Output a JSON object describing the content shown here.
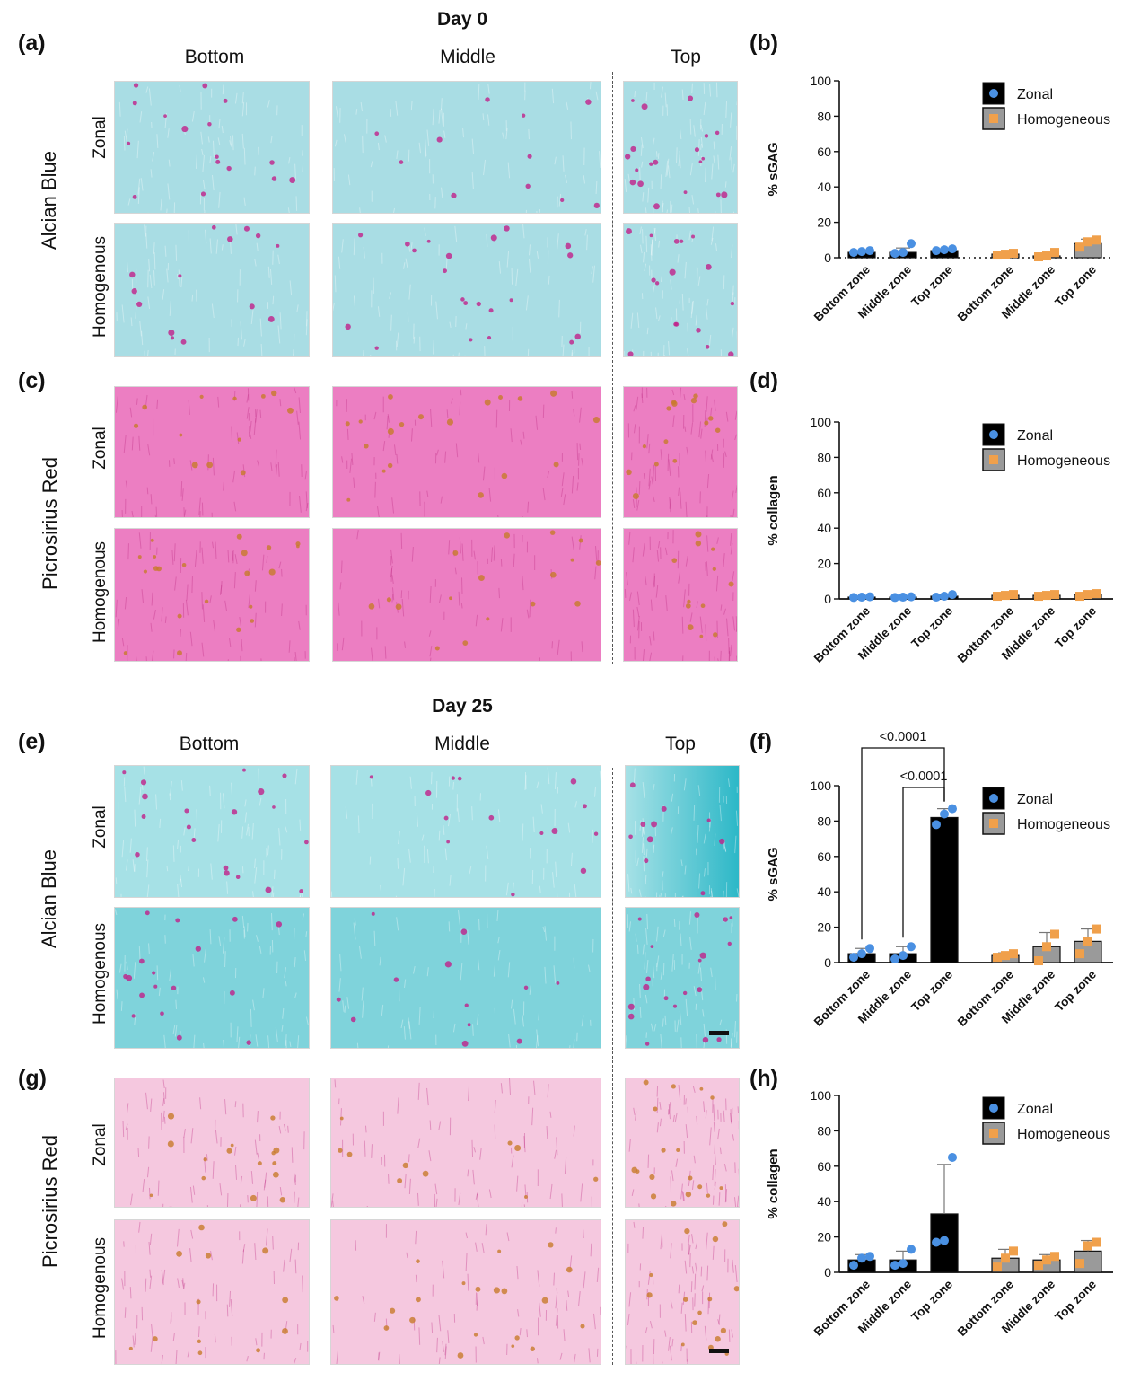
{
  "figure": {
    "day_labels": [
      "Day 0",
      "Day 25"
    ],
    "panel_letters": [
      "(a)",
      "(b)",
      "(c)",
      "(d)",
      "(e)",
      "(f)",
      "(g)",
      "(h)"
    ],
    "column_headers": [
      "Bottom",
      "Middle",
      "Top"
    ],
    "stain_labels": [
      "Alcian Blue",
      "Picrosirius Red"
    ],
    "row_labels": [
      "Zonal",
      "Homogenous"
    ]
  },
  "colors": {
    "alcian_bg": "#a9dde4",
    "alcian_bg_day25": "#7fd3db",
    "picro_bg": "#ec7ec2",
    "picro_bg_day25": "#f5c8df",
    "cell_magenta": "#c0208a",
    "cell_orange": "#c87a2a",
    "zonal_bar": "#000000",
    "homog_bar": "#9a9a9a",
    "zonal_dot": "#4a90e2",
    "homog_dot": "#f0a04b"
  },
  "chart_data": [
    {
      "type": "bar",
      "panel": "(b)",
      "ylabel": "% sGAG",
      "ylim": [
        0,
        100
      ],
      "yticks": [
        0,
        20,
        40,
        60,
        80,
        100
      ],
      "categories": [
        "Bottom zone",
        "Middle zone",
        "Top zone",
        "Bottom zone",
        "Middle zone",
        "Top zone"
      ],
      "legend": [
        "Zonal",
        "Homogeneous"
      ],
      "legend_position": "top-right",
      "zero_line_dotted": true,
      "bars": [
        {
          "group": "Zonal",
          "mean": 3,
          "sd": 1,
          "points": [
            3,
            3.5,
            4
          ]
        },
        {
          "group": "Zonal",
          "mean": 3,
          "sd": 2.5,
          "points": [
            2.5,
            3,
            8
          ]
        },
        {
          "group": "Zonal",
          "mean": 4,
          "sd": 1,
          "points": [
            4,
            4.5,
            5
          ]
        },
        {
          "group": "Homogeneous",
          "mean": 2,
          "sd": 0.5,
          "points": [
            1.5,
            2,
            2.5
          ]
        },
        {
          "group": "Homogeneous",
          "mean": 1,
          "sd": 1,
          "points": [
            0.5,
            1,
            3
          ]
        },
        {
          "group": "Homogeneous",
          "mean": 8,
          "sd": 2.5,
          "points": [
            6,
            9,
            10
          ]
        }
      ],
      "comparisons": []
    },
    {
      "type": "bar",
      "panel": "(d)",
      "ylabel": "% collagen",
      "ylim": [
        0,
        100
      ],
      "yticks": [
        0,
        20,
        40,
        60,
        80,
        100
      ],
      "categories": [
        "Bottom zone",
        "Middle zone",
        "Top zone",
        "Bottom zone",
        "Middle zone",
        "Top zone"
      ],
      "legend": [
        "Zonal",
        "Homogeneous"
      ],
      "legend_position": "top-right",
      "zero_line_dotted": false,
      "bars": [
        {
          "group": "Zonal",
          "mean": 1,
          "sd": 0.3,
          "points": [
            0.8,
            1,
            1.2
          ]
        },
        {
          "group": "Zonal",
          "mean": 1,
          "sd": 0.3,
          "points": [
            0.8,
            1,
            1.2
          ]
        },
        {
          "group": "Zonal",
          "mean": 1.5,
          "sd": 0.8,
          "points": [
            1,
            1.5,
            2.5
          ]
        },
        {
          "group": "Homogeneous",
          "mean": 2,
          "sd": 0.5,
          "points": [
            1.5,
            2,
            2.5
          ]
        },
        {
          "group": "Homogeneous",
          "mean": 2,
          "sd": 0.5,
          "points": [
            1.5,
            2,
            2.5
          ]
        },
        {
          "group": "Homogeneous",
          "mean": 2.5,
          "sd": 0.8,
          "points": [
            1.5,
            2.5,
            3
          ]
        }
      ],
      "comparisons": []
    },
    {
      "type": "bar",
      "panel": "(f)",
      "ylabel": "% sGAG",
      "ylim": [
        0,
        100
      ],
      "yticks": [
        0,
        20,
        40,
        60,
        80,
        100
      ],
      "categories": [
        "Bottom zone",
        "Middle zone",
        "Top zone",
        "Bottom zone",
        "Middle zone",
        "Top zone"
      ],
      "legend": [
        "Zonal",
        "Homogeneous"
      ],
      "legend_position": "top-right",
      "zero_line_dotted": false,
      "bars": [
        {
          "group": "Zonal",
          "mean": 5,
          "sd": 3,
          "points": [
            3,
            5,
            8
          ]
        },
        {
          "group": "Zonal",
          "mean": 5,
          "sd": 4,
          "points": [
            2,
            4,
            9
          ]
        },
        {
          "group": "Zonal",
          "mean": 82,
          "sd": 5,
          "points": [
            78,
            84,
            87
          ]
        },
        {
          "group": "Homogeneous",
          "mean": 4,
          "sd": 1.5,
          "points": [
            3,
            4,
            5
          ]
        },
        {
          "group": "Homogeneous",
          "mean": 9,
          "sd": 8,
          "points": [
            1,
            9,
            16
          ]
        },
        {
          "group": "Homogeneous",
          "mean": 12,
          "sd": 7,
          "points": [
            5,
            12,
            19
          ]
        }
      ],
      "comparisons": [
        {
          "from": 0,
          "to": 2,
          "label": "<0.0001"
        },
        {
          "from": 1,
          "to": 2,
          "label": "<0.0001"
        }
      ]
    },
    {
      "type": "bar",
      "panel": "(h)",
      "ylabel": "% collagen",
      "ylim": [
        0,
        100
      ],
      "yticks": [
        0,
        20,
        40,
        60,
        80,
        100
      ],
      "categories": [
        "Bottom zone",
        "Middle zone",
        "Top zone",
        "Bottom zone",
        "Middle zone",
        "Top zone"
      ],
      "legend": [
        "Zonal",
        "Homogeneous"
      ],
      "legend_position": "top-right",
      "zero_line_dotted": false,
      "bars": [
        {
          "group": "Zonal",
          "mean": 7,
          "sd": 3,
          "points": [
            4,
            8,
            9
          ]
        },
        {
          "group": "Zonal",
          "mean": 7,
          "sd": 5,
          "points": [
            4,
            5,
            13
          ]
        },
        {
          "group": "Zonal",
          "mean": 33,
          "sd": 28,
          "points": [
            17,
            18,
            65
          ]
        },
        {
          "group": "Homogeneous",
          "mean": 8,
          "sd": 5,
          "points": [
            3,
            8,
            12
          ]
        },
        {
          "group": "Homogeneous",
          "mean": 7,
          "sd": 3,
          "points": [
            4,
            7,
            9
          ]
        },
        {
          "group": "Homogeneous",
          "mean": 12,
          "sd": 6,
          "points": [
            5,
            15,
            17
          ]
        }
      ],
      "comparisons": []
    }
  ]
}
